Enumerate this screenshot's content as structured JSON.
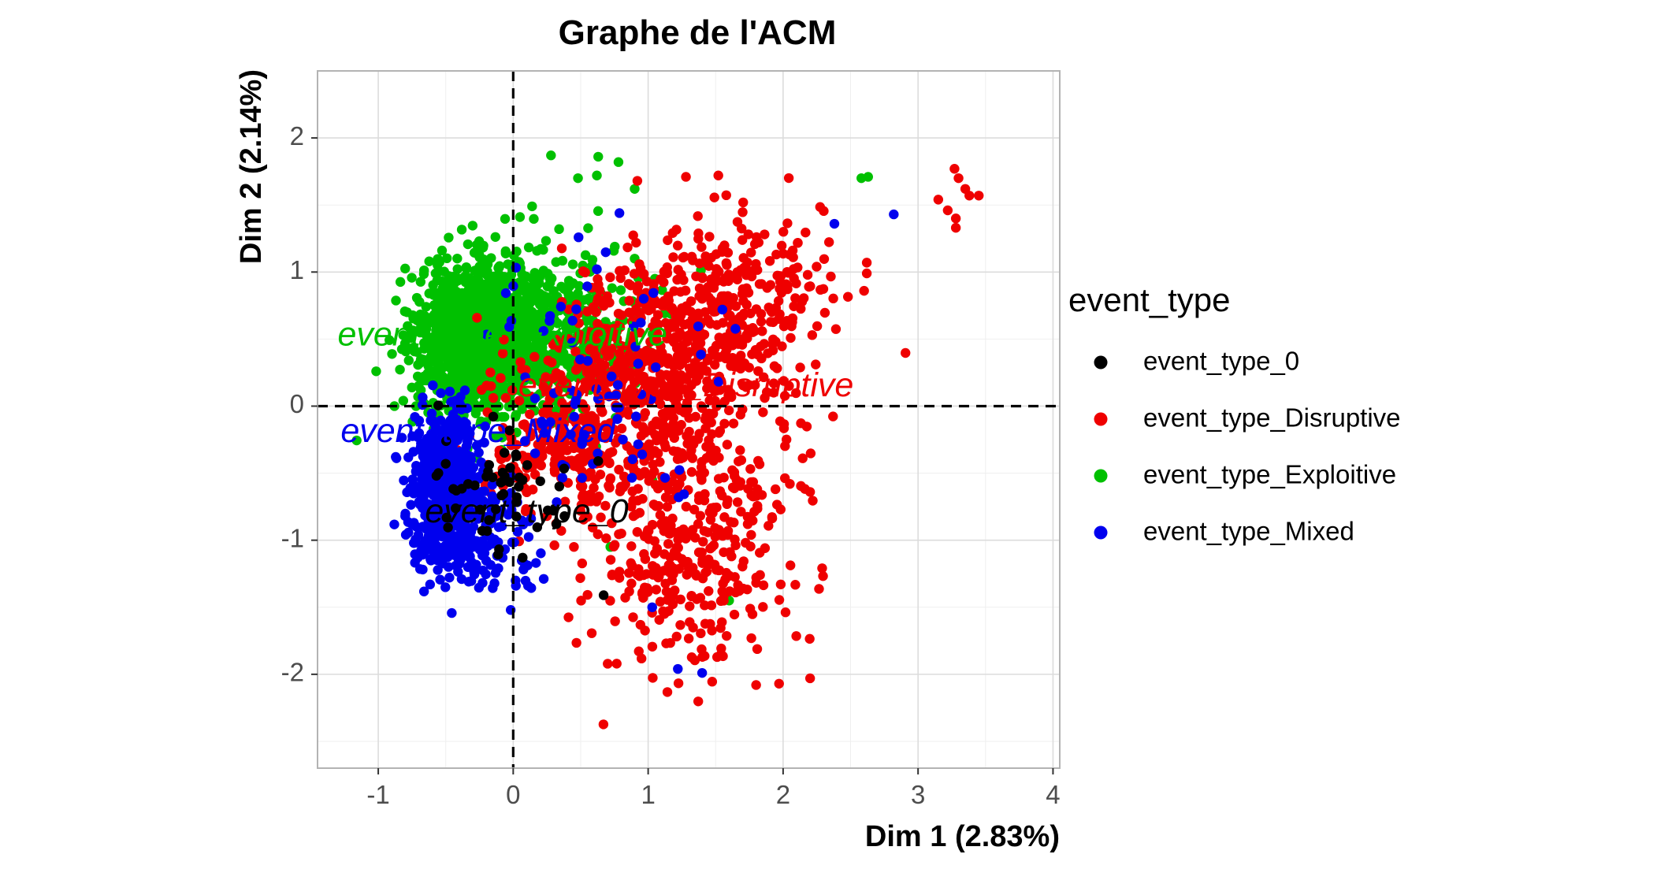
{
  "chart_data": {
    "type": "scatter",
    "title": "Graphe de l'ACM",
    "xlabel": "Dim 1 (2.83%)",
    "ylabel": "Dim 2 (2.14%)",
    "xlim": [
      -1.45,
      4.05
    ],
    "ylim": [
      -2.7,
      2.5
    ],
    "x_ticks": [
      -1,
      0,
      1,
      2,
      3,
      4
    ],
    "y_ticks": [
      -2,
      -1,
      0,
      1,
      2
    ],
    "x_tick_labels": [
      "-1",
      "0",
      "1",
      "2",
      "3",
      "4"
    ],
    "y_tick_labels": [
      "-2",
      "-1",
      "0",
      "1",
      "2"
    ],
    "grid": true,
    "reference_lines": {
      "x": 0,
      "y": 0,
      "style": "dashed"
    },
    "legend": {
      "title": "event_type",
      "position": "right",
      "entries": [
        "event_type_0",
        "event_type_Disruptive",
        "event_type_Exploitive",
        "event_type_Mixed"
      ]
    },
    "series": [
      {
        "name": "event_type_Exploitive",
        "color": "#00c000",
        "centroid_label": "event_type_Exploitive",
        "centroid": [
          -0.08,
          0.52
        ],
        "clusters": [
          {
            "n": 1500,
            "center": [
              -0.22,
              0.5
            ],
            "sd": [
              0.24,
              0.27
            ]
          },
          {
            "n": 300,
            "center": [
              0.35,
              0.55
            ],
            "sd": [
              0.33,
              0.33
            ]
          }
        ],
        "points": [
          [
            0.28,
            1.87
          ],
          [
            0.63,
            1.86
          ],
          [
            0.78,
            1.82
          ],
          [
            0.62,
            1.72
          ],
          [
            0.48,
            1.7
          ],
          [
            0.9,
            1.62
          ],
          [
            0.14,
            1.49
          ],
          [
            2.58,
            1.7
          ],
          [
            2.63,
            1.71
          ],
          [
            0.05,
            1.41
          ],
          [
            0.34,
            1.32
          ],
          [
            -0.88,
            0.0
          ],
          [
            -0.72,
            0.0
          ],
          [
            0.9,
            1.1
          ],
          [
            1.05,
            0.95
          ],
          [
            1.15,
            0.75
          ],
          [
            1.03,
            -0.55
          ],
          [
            1.6,
            -1.45
          ],
          [
            0.72,
            -1.05
          ]
        ]
      },
      {
        "name": "event_type_Disruptive",
        "color": "#ef0000",
        "centroid_label": "event_type_Disruptive",
        "centroid": [
          1.28,
          0.14
        ],
        "clusters": [
          {
            "n": 650,
            "center": [
              0.95,
              0.1
            ],
            "sd": [
              0.45,
              0.42
            ]
          },
          {
            "n": 350,
            "center": [
              1.3,
              -1.05
            ],
            "sd": [
              0.38,
              0.45
            ]
          },
          {
            "n": 300,
            "center": [
              1.6,
              0.8
            ],
            "sd": [
              0.35,
              0.3
            ]
          },
          {
            "n": 120,
            "center": [
              0.3,
              -0.35
            ],
            "sd": [
              0.25,
              0.15
            ]
          }
        ],
        "points": [
          [
            3.27,
            1.77
          ],
          [
            3.3,
            1.7
          ],
          [
            3.35,
            1.62
          ],
          [
            3.38,
            1.57
          ],
          [
            3.45,
            1.57
          ],
          [
            3.15,
            1.54
          ],
          [
            3.22,
            1.46
          ],
          [
            3.28,
            1.4
          ],
          [
            3.28,
            1.33
          ],
          [
            2.62,
            1.07
          ],
          [
            2.62,
            0.99
          ],
          [
            2.6,
            0.86
          ],
          [
            2.2,
            -0.64
          ],
          [
            2.05,
            -0.58
          ],
          [
            2.2,
            -2.03
          ],
          [
            1.97,
            -2.07
          ],
          [
            1.8,
            -2.08
          ],
          [
            1.28,
            1.71
          ],
          [
            1.52,
            1.72
          ],
          [
            0.92,
            1.68
          ],
          [
            0.25,
            -0.82
          ],
          [
            0.45,
            -1.05
          ]
        ]
      },
      {
        "name": "event_type_Mixed",
        "color": "#0000ee",
        "centroid_label": "event_type_Mixed",
        "centroid": [
          -0.26,
          -0.2
        ],
        "clusters": [
          {
            "n": 550,
            "center": [
              -0.5,
              -0.62
            ],
            "sd": [
              0.13,
              0.28
            ]
          },
          {
            "n": 100,
            "center": [
              -0.15,
              -0.95
            ],
            "sd": [
              0.2,
              0.22
            ]
          },
          {
            "n": 80,
            "center": [
              0.6,
              0.1
            ],
            "sd": [
              0.45,
              0.45
            ]
          }
        ],
        "points": [
          [
            2.82,
            1.43
          ],
          [
            2.38,
            1.36
          ],
          [
            1.22,
            -1.96
          ],
          [
            1.4,
            -1.99
          ],
          [
            1.03,
            -1.5
          ],
          [
            0.11,
            -1.34
          ],
          [
            0.02,
            -1.34
          ],
          [
            -0.28,
            -1.23
          ],
          [
            -0.32,
            -1.12
          ],
          [
            1.55,
            0.72
          ],
          [
            0.62,
            1.02
          ]
        ]
      },
      {
        "name": "event_type_0",
        "color": "#000000",
        "centroid_label": "event_type_0",
        "centroid": [
          0.1,
          -0.8
        ],
        "clusters": [
          {
            "n": 45,
            "center": [
              -0.2,
              -0.6
            ],
            "sd": [
              0.28,
              0.22
            ]
          }
        ],
        "points": [
          [
            0.67,
            -1.41
          ],
          [
            0.63,
            -0.41
          ],
          [
            0.32,
            -0.88
          ],
          [
            0.38,
            -0.82
          ],
          [
            0.07,
            -1.13
          ],
          [
            -0.23,
            -0.93
          ],
          [
            -0.18,
            -0.85
          ],
          [
            -0.5,
            -0.43
          ],
          [
            0.02,
            -0.36
          ],
          [
            0.3,
            -0.78
          ]
        ]
      }
    ]
  }
}
